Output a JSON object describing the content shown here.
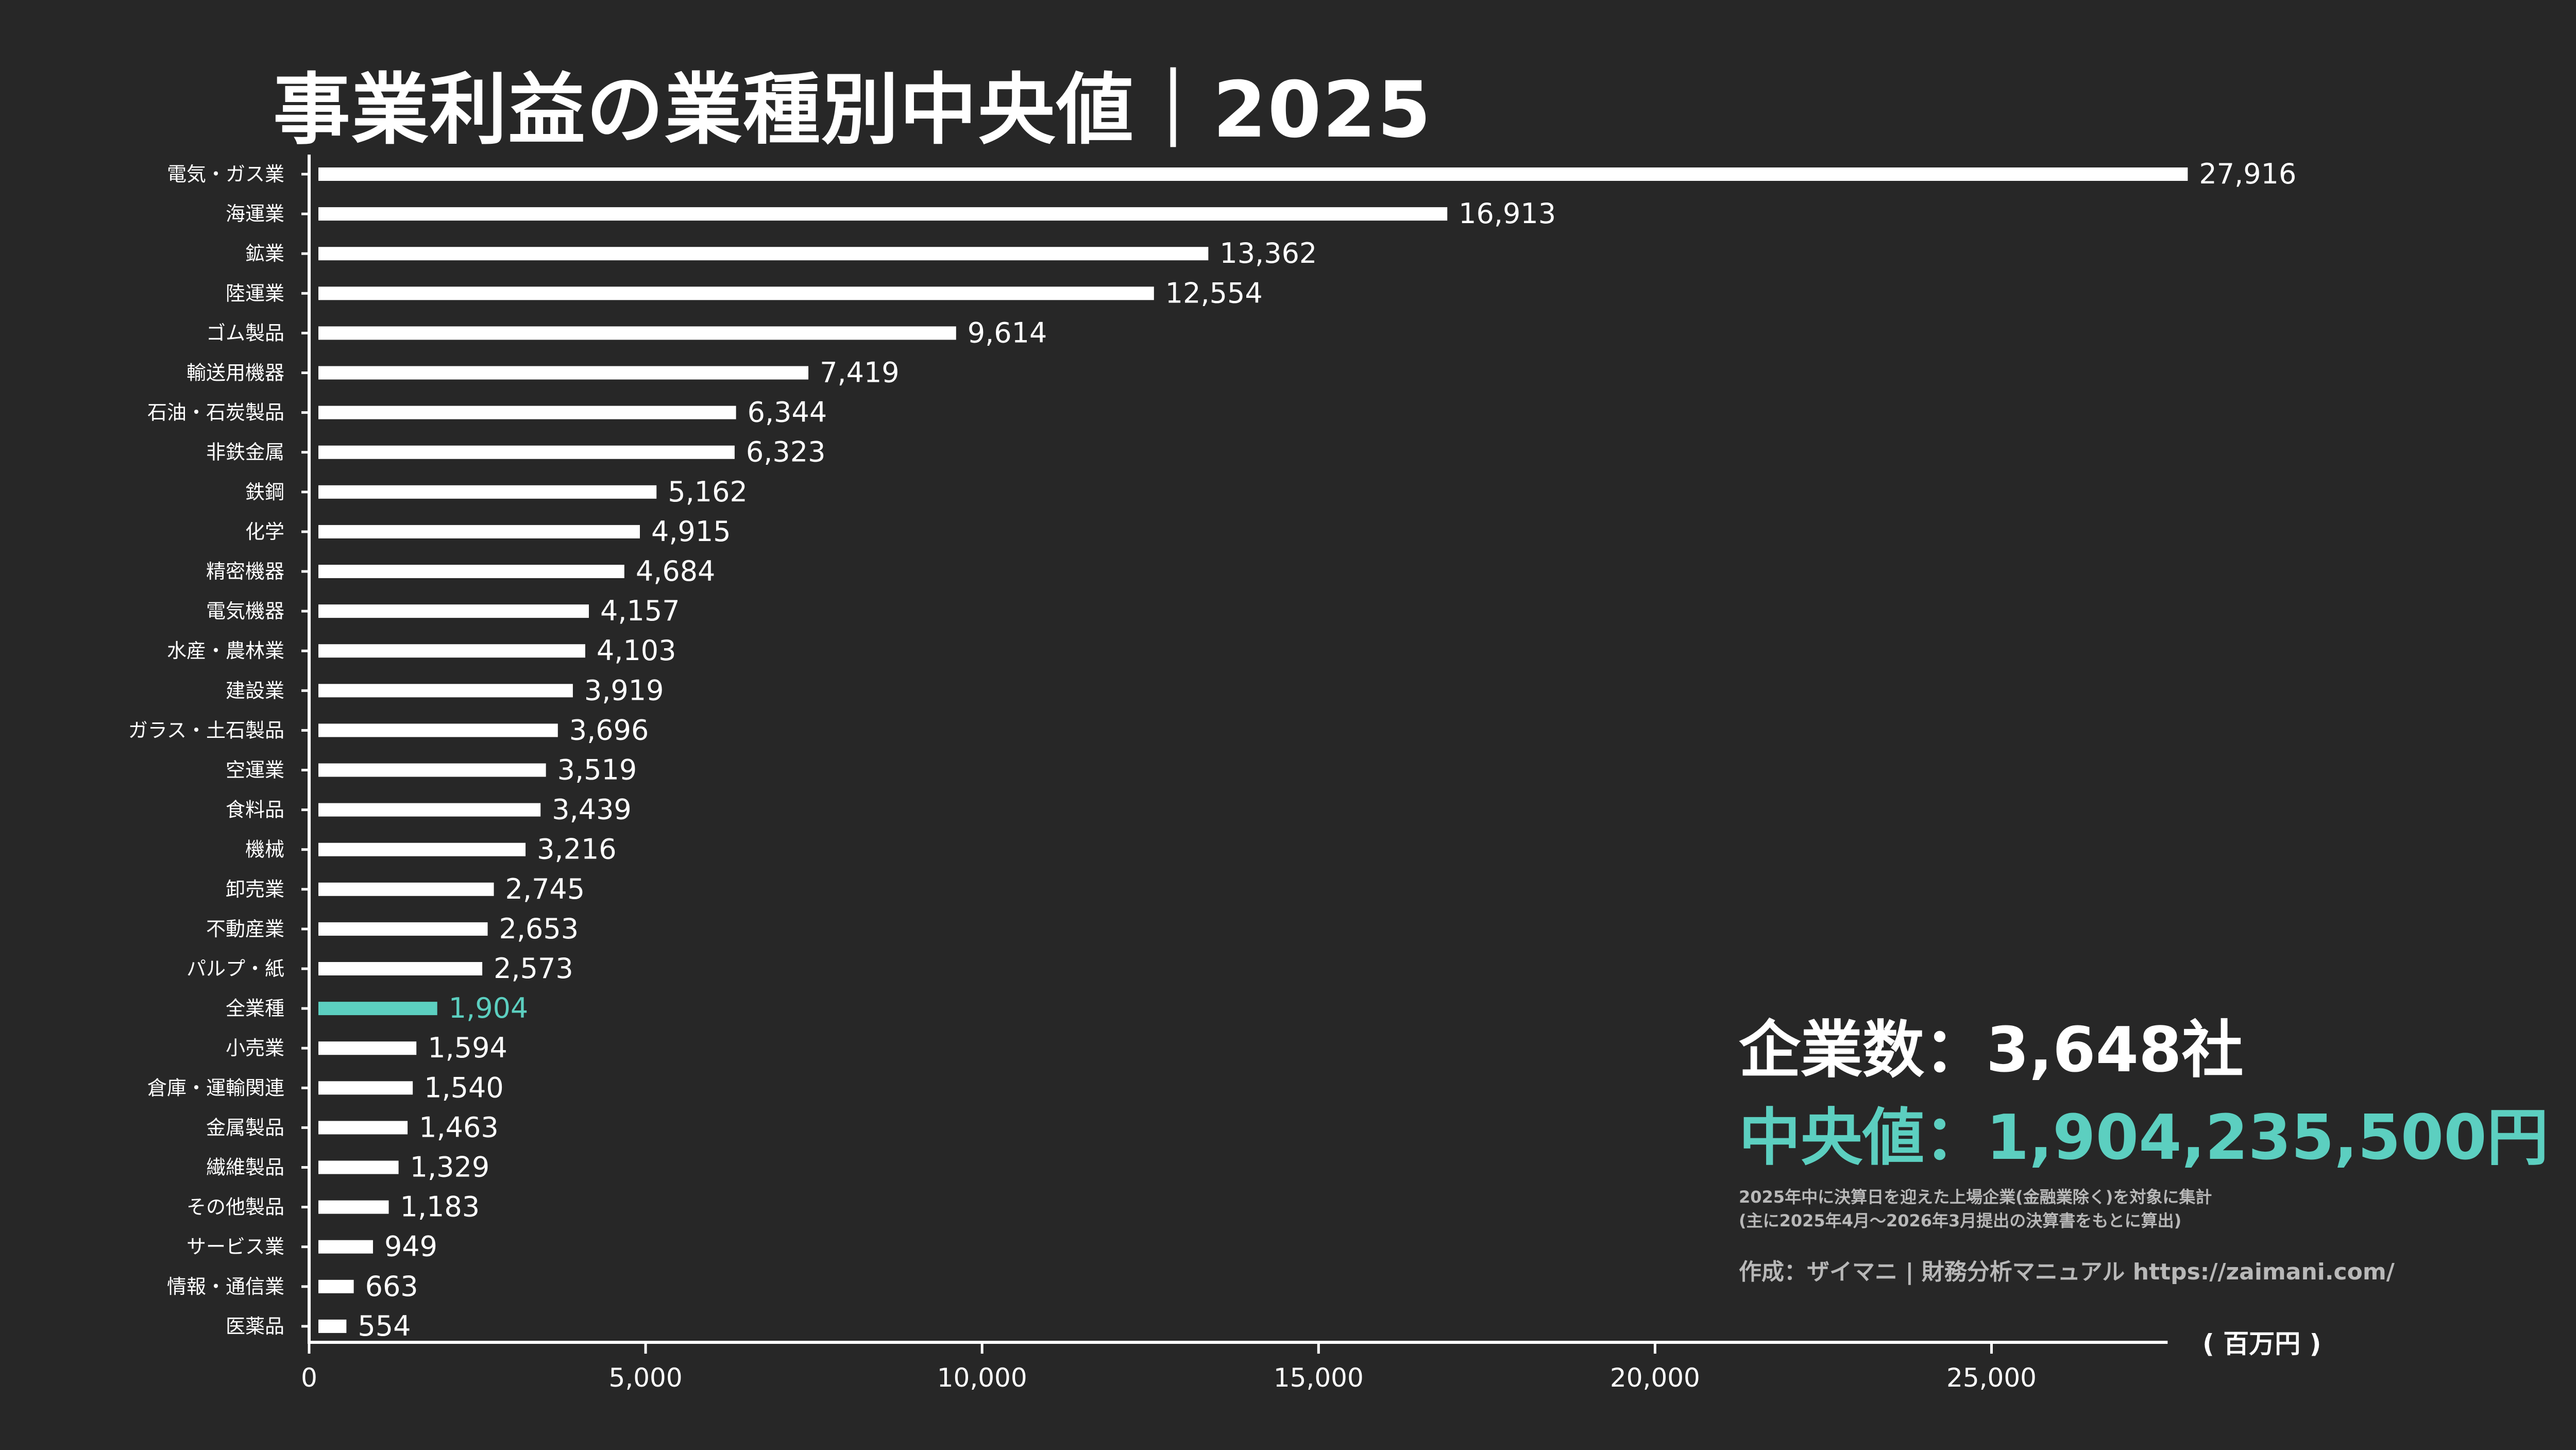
{
  "title": "事業利益の業種別中央値｜2025",
  "summary": {
    "company_label": "企業数",
    "company_value": "3,648社",
    "median_label": "中央値",
    "median_value": "1,904,235,500円",
    "separator": "：",
    "note_line1": "2025年中に決算日を迎えた上場企業(金融業除く)を対象に集計",
    "note_line2": "(主に2025年4月〜2026年3月提出の決算書をもとに算出)",
    "credit": "作成：ザイマニ | 財務分析マニュアル https://zaimani.com/"
  },
  "colors": {
    "background": "#272727",
    "bar": "#ffffff",
    "highlight": "#5ccfc0",
    "axis": "#ffffff"
  },
  "chart_data": {
    "type": "bar",
    "orientation": "horizontal",
    "unit_label": "( 百万円 )",
    "xlim": [
      0,
      28000
    ],
    "x_ticks": [
      0,
      5000,
      10000,
      15000,
      20000,
      25000
    ],
    "x_tick_labels": [
      "0",
      "5,000",
      "10,000",
      "15,000",
      "20,000",
      "25,000"
    ],
    "highlight_category": "全業種",
    "categories": [
      "電気・ガス業",
      "海運業",
      "鉱業",
      "陸運業",
      "ゴム製品",
      "輸送用機器",
      "石油・石炭製品",
      "非鉄金属",
      "鉄鋼",
      "化学",
      "精密機器",
      "電気機器",
      "水産・農林業",
      "建設業",
      "ガラス・土石製品",
      "空運業",
      "食料品",
      "機械",
      "卸売業",
      "不動産業",
      "パルプ・紙",
      "全業種",
      "小売業",
      "倉庫・運輸関連",
      "金属製品",
      "繊維製品",
      "その他製品",
      "サービス業",
      "情報・通信業",
      "医薬品"
    ],
    "values": [
      27916,
      16913,
      13362,
      12554,
      9614,
      7419,
      6344,
      6323,
      5162,
      4915,
      4684,
      4157,
      4103,
      3919,
      3696,
      3519,
      3439,
      3216,
      2745,
      2653,
      2573,
      1904,
      1594,
      1540,
      1463,
      1329,
      1183,
      949,
      663,
      554
    ],
    "value_labels": [
      "27,916",
      "16,913",
      "13,362",
      "12,554",
      "9,614",
      "7,419",
      "6,344",
      "6,323",
      "5,162",
      "4,915",
      "4,684",
      "4,157",
      "4,103",
      "3,919",
      "3,696",
      "3,519",
      "3,439",
      "3,216",
      "2,745",
      "2,653",
      "2,573",
      "1,904",
      "1,594",
      "1,540",
      "1,463",
      "1,329",
      "1,183",
      "949",
      "663",
      "554"
    ]
  }
}
